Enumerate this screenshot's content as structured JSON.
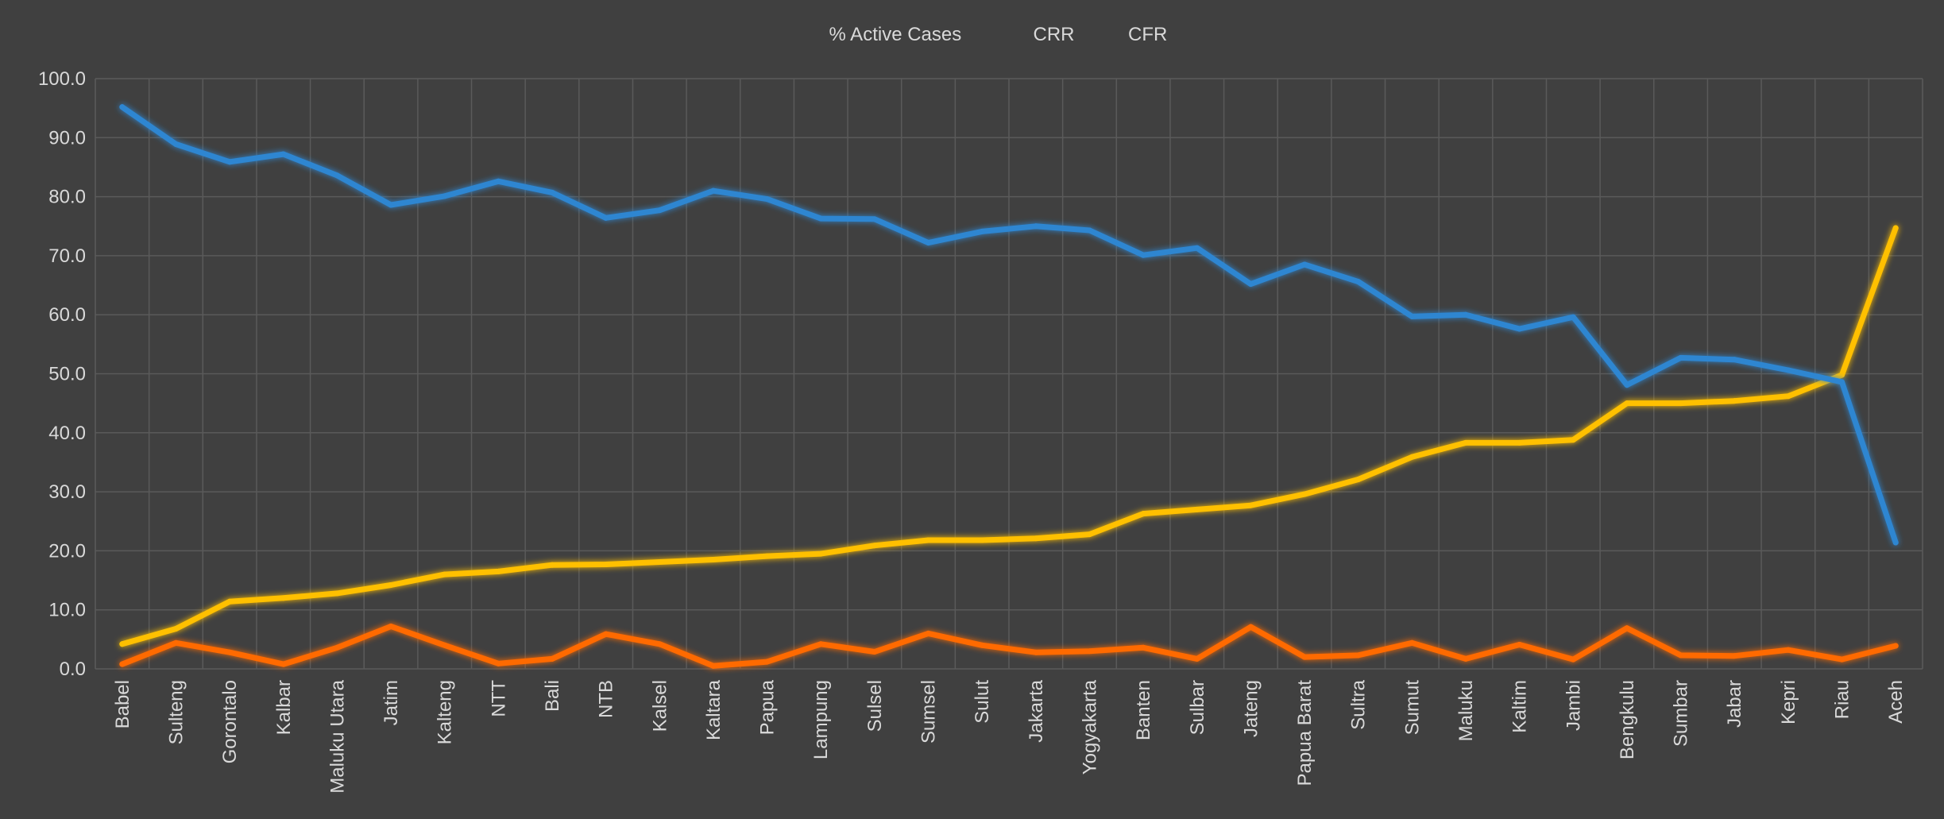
{
  "colors": {
    "background": "#404040",
    "grid": "#5a5a5a",
    "text": "#d9d9d9",
    "active": "#FFC000",
    "crr": "#2E86D1",
    "cfr": "#FF6A00"
  },
  "chart_data": {
    "type": "line",
    "title": "",
    "xlabel": "",
    "ylabel": "",
    "ylim": [
      0,
      100
    ],
    "yticks": [
      "100.0",
      "90.0",
      "80.0",
      "70.0",
      "60.0",
      "50.0",
      "40.0",
      "30.0",
      "20.0",
      "10.0",
      "0.0"
    ],
    "grid": true,
    "legend_position": "top-center",
    "categories": [
      "Babel",
      "Sulteng",
      "Gorontalo",
      "Kalbar",
      "Maluku Utara",
      "Jatim",
      "Kalteng",
      "NTT",
      "Bali",
      "NTB",
      "Kalsel",
      "Kaltara",
      "Papua",
      "Lampung",
      "Sulsel",
      "Sumsel",
      "Sulut",
      "Jakarta",
      "Yogyakarta",
      "Banten",
      "Sulbar",
      "Jateng",
      "Papua Barat",
      "Sultra",
      "Sumut",
      "Maluku",
      "Kaltim",
      "Jambi",
      "Bengkulu",
      "Sumbar",
      "Jabar",
      "Kepri",
      "Riau",
      "Aceh"
    ],
    "series": [
      {
        "name": "% Active Cases",
        "color": "#FFC000",
        "values": [
          4.2,
          6.8,
          11.4,
          12.0,
          12.8,
          14.2,
          16.0,
          16.5,
          17.6,
          17.7,
          18.1,
          18.5,
          19.1,
          19.5,
          20.9,
          21.8,
          21.8,
          22.1,
          22.8,
          26.3,
          27.0,
          27.7,
          29.6,
          32.1,
          35.9,
          38.3,
          38.3,
          38.8,
          45.0,
          45.0,
          45.4,
          46.2,
          49.8,
          74.7
        ]
      },
      {
        "name": "CRR",
        "color": "#2E86D1",
        "values": [
          95.2,
          88.9,
          85.9,
          87.2,
          83.6,
          78.6,
          80.1,
          82.6,
          80.7,
          76.4,
          77.7,
          81.0,
          79.6,
          76.3,
          76.2,
          72.2,
          74.1,
          75.0,
          74.3,
          70.1,
          71.3,
          65.2,
          68.5,
          65.6,
          59.7,
          60.0,
          57.6,
          59.6,
          48.1,
          52.7,
          52.4,
          50.6,
          48.6,
          21.4
        ]
      },
      {
        "name": "CFR",
        "color": "#FF6A00",
        "values": [
          0.8,
          4.4,
          2.8,
          0.8,
          3.6,
          7.2,
          4.0,
          0.9,
          1.7,
          5.9,
          4.2,
          0.5,
          1.2,
          4.2,
          2.9,
          6.0,
          4.0,
          2.8,
          3.0,
          3.6,
          1.7,
          7.1,
          2.0,
          2.3,
          4.4,
          1.7,
          4.1,
          1.6,
          6.9,
          2.3,
          2.2,
          3.2,
          1.6,
          3.9
        ]
      }
    ]
  }
}
